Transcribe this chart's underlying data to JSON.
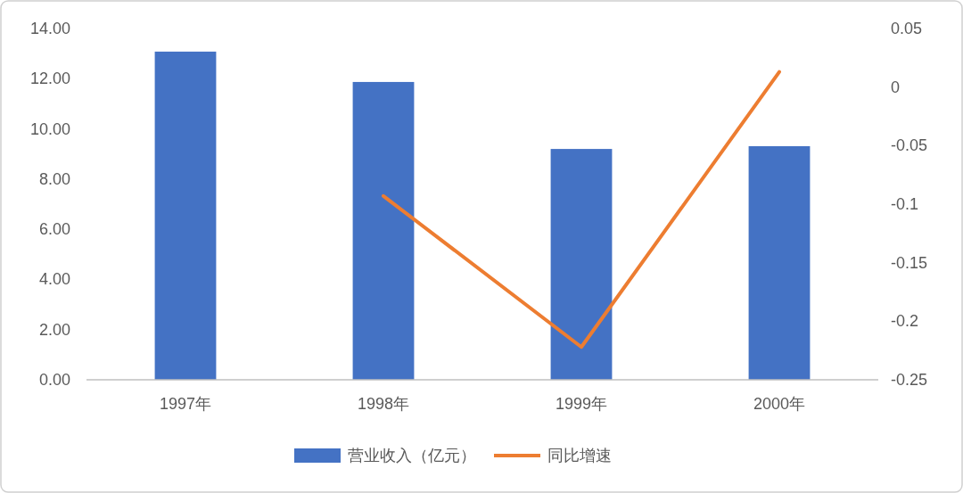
{
  "chart_data": {
    "type": "bar",
    "categories": [
      "1997年",
      "1998年",
      "1999年",
      "2000年"
    ],
    "series": [
      {
        "name": "营业收入（亿元）",
        "color": "#4472c4",
        "values": [
          13.08,
          11.87,
          9.2,
          9.31
        ]
      },
      {
        "name": "同比增速",
        "color": "#ed7d31",
        "type": "line",
        "axis": "y2",
        "values": [
          null,
          -0.093,
          -0.222,
          0.013
        ]
      }
    ],
    "ylim": [
      0,
      14
    ],
    "yticks": [
      {
        "value": 0,
        "label": "0.00"
      },
      {
        "value": 2,
        "label": "2.00"
      },
      {
        "value": 4,
        "label": "4.00"
      },
      {
        "value": 6,
        "label": "6.00"
      },
      {
        "value": 8,
        "label": "8.00"
      },
      {
        "value": 10,
        "label": "10.00"
      },
      {
        "value": 12,
        "label": "12.00"
      },
      {
        "value": 14,
        "label": "14.00"
      }
    ],
    "y2lim": [
      -0.25,
      0.05
    ],
    "y2ticks": [
      -0.25,
      -0.2,
      -0.15,
      -0.1,
      -0.05,
      0,
      0.05
    ],
    "grid": false,
    "legend": "bottom",
    "marker": "none",
    "line_style": "solid"
  }
}
